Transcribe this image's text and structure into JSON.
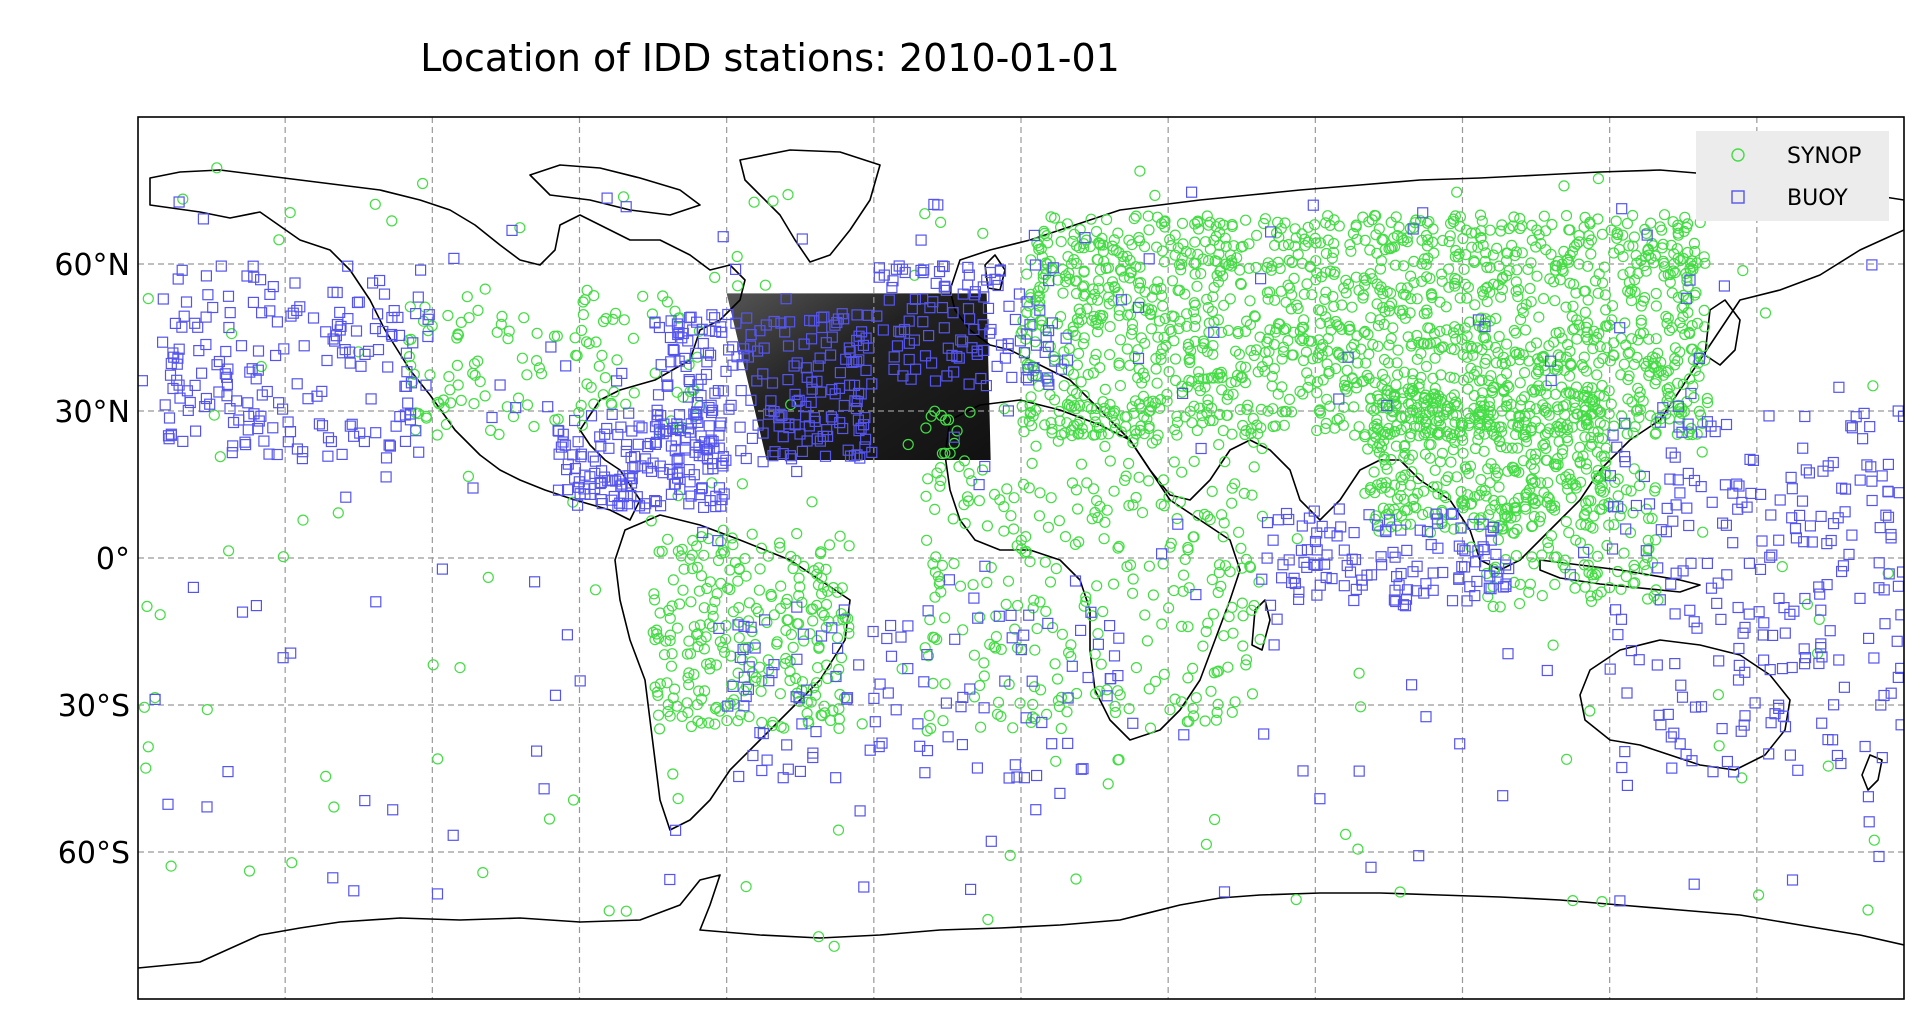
{
  "title": "Location of IDD stations: 2010-01-01",
  "chart_data": {
    "type": "scatter",
    "projection": "equirectangular",
    "x_range_lon": [
      -180,
      180
    ],
    "y_range_lat": [
      -90,
      90
    ],
    "grid": true,
    "grid_lons": [
      -150,
      -120,
      -90,
      -60,
      -30,
      0,
      30,
      60,
      90,
      120,
      150
    ],
    "grid_lats": [
      60,
      30,
      0,
      -30,
      -60
    ],
    "y_tick_labels": [
      {
        "lat": 60,
        "label": "60°N"
      },
      {
        "lat": 30,
        "label": "30°N"
      },
      {
        "lat": 0,
        "label": "0°"
      },
      {
        "lat": -30,
        "label": "30°S"
      },
      {
        "lat": -60,
        "label": "60°S"
      }
    ],
    "legend_position": "top-right",
    "colors": {
      "synop": "#44dd44",
      "buoy": "#5555ee",
      "coast": "#000000",
      "grid": "#999999"
    },
    "shaded_region": {
      "lon_min": -60,
      "lon_max": -7,
      "lat_min": 20,
      "lat_max": 54,
      "fill": "#1a1a1a"
    },
    "series": [
      {
        "name": "SYNOP",
        "marker": "circle",
        "clusters": [
          {
            "lon": [
              0,
              140
            ],
            "lat": [
              25,
              70
            ],
            "n": 1500
          },
          {
            "lon": [
              70,
              120
            ],
            "lat": [
              5,
              35
            ],
            "n": 400
          },
          {
            "lon": [
              -125,
              -65
            ],
            "lat": [
              25,
              55
            ],
            "n": 120
          },
          {
            "lon": [
              -75,
              -35
            ],
            "lat": [
              -35,
              5
            ],
            "n": 260
          },
          {
            "lon": [
              -20,
              50
            ],
            "lat": [
              -35,
              30
            ],
            "n": 320
          },
          {
            "lon": [
              95,
              130
            ],
            "lat": [
              -10,
              20
            ],
            "n": 120
          },
          {
            "lon": [
              -180,
              180
            ],
            "lat": [
              -80,
              80
            ],
            "n": 150
          }
        ]
      },
      {
        "name": "BUOY",
        "marker": "square",
        "clusters": [
          {
            "lon": [
              -75,
              -30
            ],
            "lat": [
              20,
              50
            ],
            "n": 220
          },
          {
            "lon": [
              -30,
              10
            ],
            "lat": [
              35,
              60
            ],
            "n": 120
          },
          {
            "lon": [
              -175,
              -120
            ],
            "lat": [
              20,
              60
            ],
            "n": 180
          },
          {
            "lon": [
              -95,
              -60
            ],
            "lat": [
              10,
              30
            ],
            "n": 150
          },
          {
            "lon": [
              50,
              100
            ],
            "lat": [
              -10,
              10
            ],
            "n": 120
          },
          {
            "lon": [
              120,
              180
            ],
            "lat": [
              -45,
              30
            ],
            "n": 220
          },
          {
            "lon": [
              -60,
              20
            ],
            "lat": [
              -45,
              -10
            ],
            "n": 100
          },
          {
            "lon": [
              -180,
              180
            ],
            "lat": [
              -70,
              75
            ],
            "n": 180
          }
        ]
      }
    ]
  }
}
